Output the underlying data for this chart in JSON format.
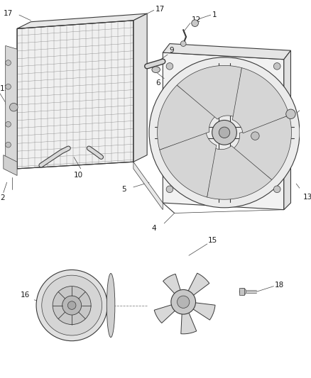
{
  "bg_color": "#ffffff",
  "line_color": "#3a3a3a",
  "label_color": "#1a1a1a",
  "fig_width": 4.38,
  "fig_height": 5.33,
  "dpi": 100
}
